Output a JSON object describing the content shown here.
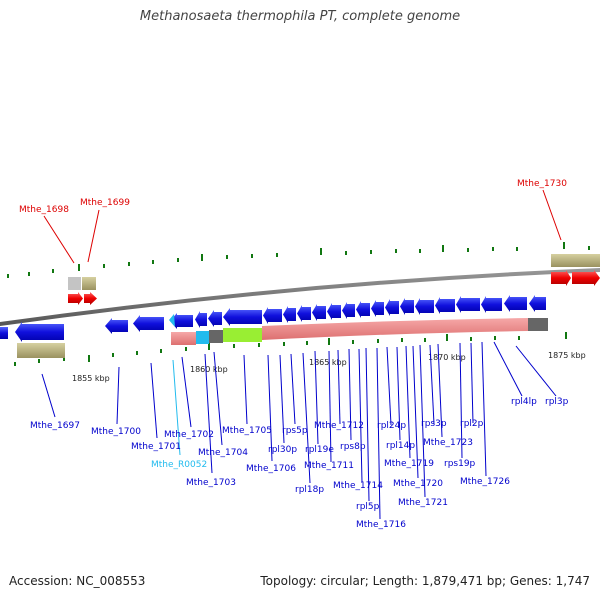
{
  "title": "Methanosaeta thermophila PT, complete genome",
  "footer": {
    "accession": "Accession: NC_008553",
    "topology": "Topology: circular; Length: 1,879,471 bp; Genes: 1,747"
  },
  "colors": {
    "forward_gene": "#ee0000",
    "reverse_gene": "#1010dd",
    "rna_gene": "#22bbee",
    "rRNA_block": "#ee8888",
    "green_block": "#99ee33",
    "dark_block": "#666666",
    "ruler": "#777777",
    "tick": "#117711",
    "tan_box": "#b8b07a"
  },
  "scale_labels": [
    "1855 kbp",
    "1860 kbp",
    "1865 kbp",
    "1870 kbp",
    "1875 kbp"
  ],
  "forward_labels": [
    "Mthe_1698",
    "Mthe_1699",
    "Mthe_1730"
  ],
  "reverse_labels": [
    "Mthe_1697",
    "Mthe_1700",
    "Mthe_1701",
    "Mthe_1702",
    "Mthe_R0052",
    "Mthe_1703",
    "Mthe_1704",
    "Mthe_1705",
    "Mthe_1706",
    "rpl30p",
    "rps5p",
    "rpl18p",
    "rpl19e",
    "Mthe_1711",
    "Mthe_1712",
    "rps8p",
    "Mthe_1714",
    "rpl5p",
    "Mthe_1716",
    "rpl24p",
    "rpl14p",
    "Mthe_1719",
    "Mthe_1720",
    "Mthe_1721",
    "rps3p",
    "Mthe_1723",
    "rps19p",
    "rpl2p",
    "Mthe_1726",
    "rpl4lp",
    "rpl3p"
  ]
}
